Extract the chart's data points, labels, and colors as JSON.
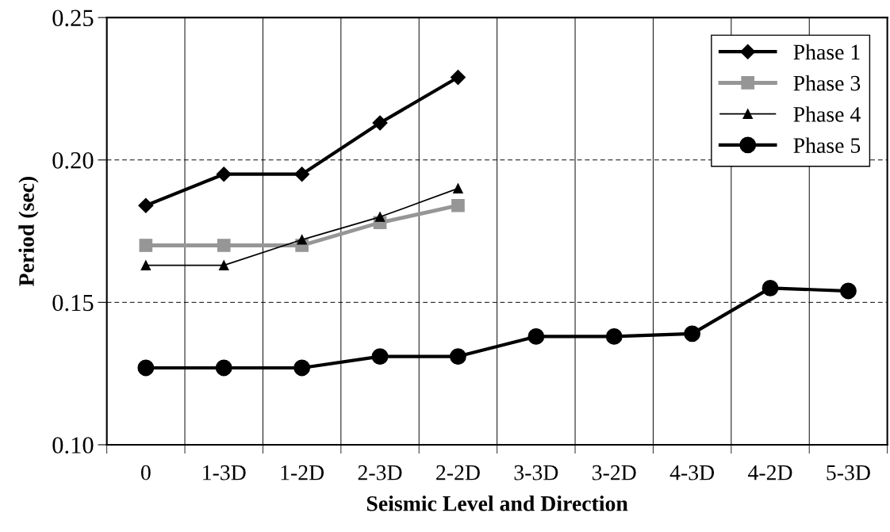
{
  "chart_data": {
    "type": "line",
    "xlabel": "Seismic Level and Direction",
    "ylabel": "Period (sec)",
    "categories": [
      "0",
      "1-3D",
      "1-2D",
      "2-3D",
      "2-2D",
      "3-3D",
      "3-2D",
      "4-3D",
      "4-2D",
      "5-3D"
    ],
    "series": [
      {
        "name": "Phase 1",
        "color": "#000000",
        "marker": "diamond",
        "values": [
          0.184,
          0.195,
          0.195,
          0.213,
          0.229,
          null,
          null,
          null,
          null,
          null
        ]
      },
      {
        "name": "Phase 3",
        "color": "#969696",
        "marker": "square",
        "values": [
          0.17,
          0.17,
          0.17,
          0.178,
          0.184,
          null,
          null,
          null,
          null,
          null
        ]
      },
      {
        "name": "Phase 4",
        "color": "#000000",
        "marker": "triangle",
        "values": [
          0.163,
          0.163,
          0.172,
          0.18,
          0.19,
          null,
          null,
          null,
          null,
          null
        ]
      },
      {
        "name": "Phase 5",
        "color": "#000000",
        "marker": "circle",
        "values": [
          0.127,
          0.127,
          0.127,
          0.131,
          0.131,
          0.138,
          0.138,
          0.139,
          0.155,
          0.154
        ]
      }
    ],
    "ylim": [
      0.1,
      0.25
    ],
    "yticks": [
      {
        "value": 0.1,
        "label": "0.10"
      },
      {
        "value": 0.15,
        "label": "0.15"
      },
      {
        "value": 0.2,
        "label": "0.20"
      },
      {
        "value": 0.25,
        "label": "0.25"
      }
    ],
    "grid": true,
    "legend": "top right"
  }
}
